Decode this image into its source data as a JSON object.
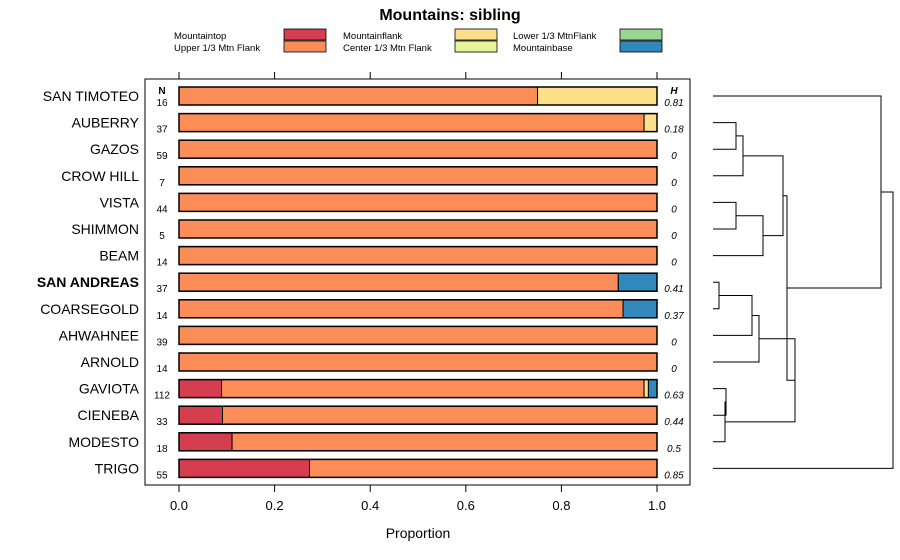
{
  "chart_data": {
    "type": "bar",
    "orientation": "horizontal",
    "stacked": true,
    "title": "Mountains: sibling",
    "xlabel": "Proportion",
    "ylabel": "",
    "xlim": [
      0,
      1
    ],
    "xticks": [
      "0.0",
      "0.2",
      "0.4",
      "0.6",
      "0.8",
      "1.0"
    ],
    "col_header_n": "N",
    "col_header_h": "H",
    "legend_position": "top",
    "legend": [
      {
        "label": "Mountaintop",
        "color": "#D53E4F"
      },
      {
        "label": "Upper 1/3 Mtn Flank",
        "color": "#FC8D59"
      },
      {
        "label": "Mountainflank",
        "color": "#FEE08B"
      },
      {
        "label": "Center 1/3 Mtn Flank",
        "color": "#E6F598"
      },
      {
        "label": "Lower 1/3 MtnFlank",
        "color": "#99D594"
      },
      {
        "label": "Mountainbase",
        "color": "#3288BD"
      }
    ],
    "categories": [
      "SAN TIMOTEO",
      "AUBERRY",
      "GAZOS",
      "CROW HILL",
      "VISTA",
      "SHIMMON",
      "BEAM",
      "SAN ANDREAS",
      "COARSEGOLD",
      "AHWAHNEE",
      "ARNOLD",
      "GAVIOTA",
      "CIENEBA",
      "MODESTO",
      "TRIGO"
    ],
    "highlighted": "SAN ANDREAS",
    "n": [
      "16",
      "37",
      "59",
      "7",
      "44",
      "5",
      "14",
      "37",
      "14",
      "39",
      "14",
      "112",
      "33",
      "18",
      "55"
    ],
    "h": [
      "0.81",
      "0.18",
      "0",
      "0",
      "0",
      "0",
      "0",
      "0.41",
      "0.37",
      "0",
      "0",
      "0.63",
      "0.44",
      "0.5",
      "0.85"
    ],
    "series": [
      {
        "name": "Mountaintop",
        "values": [
          0,
          0,
          0,
          0,
          0,
          0,
          0,
          0,
          0,
          0,
          0,
          0.089,
          0.091,
          0.111,
          0.273
        ]
      },
      {
        "name": "Upper 1/3 Mtn Flank",
        "values": [
          0.75,
          0.973,
          1,
          1,
          1,
          1,
          1,
          0.919,
          0.929,
          1,
          1,
          0.884,
          0.909,
          0.889,
          0.727
        ]
      },
      {
        "name": "Mountainflank",
        "values": [
          0.25,
          0.027,
          0,
          0,
          0,
          0,
          0,
          0,
          0,
          0,
          0,
          0.009,
          0,
          0,
          0
        ]
      },
      {
        "name": "Center 1/3 Mtn Flank",
        "values": [
          0,
          0,
          0,
          0,
          0,
          0,
          0,
          0,
          0,
          0,
          0,
          0,
          0,
          0,
          0
        ]
      },
      {
        "name": "Lower 1/3 MtnFlank",
        "values": [
          0,
          0,
          0,
          0,
          0,
          0,
          0,
          0,
          0,
          0,
          0,
          0,
          0,
          0,
          0
        ]
      },
      {
        "name": "Mountainbase",
        "values": [
          0,
          0,
          0,
          0,
          0,
          0,
          0,
          0.081,
          0.071,
          0,
          0,
          0.018,
          0,
          0,
          0
        ]
      }
    ],
    "dendrogram": true
  }
}
